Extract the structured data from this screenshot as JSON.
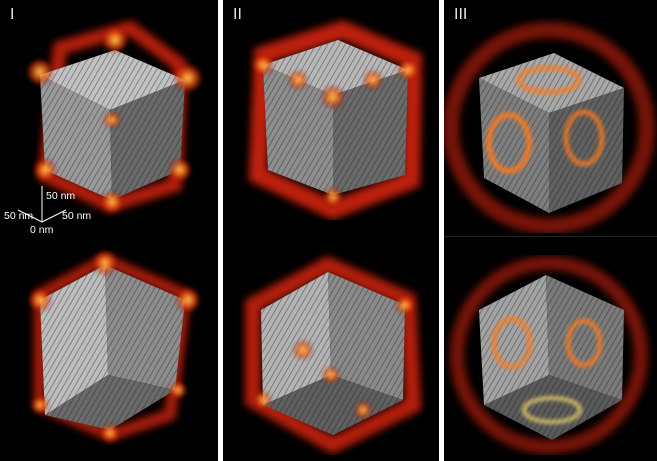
{
  "panels": [
    {
      "label": "I"
    },
    {
      "label": "II"
    },
    {
      "label": "III"
    }
  ],
  "axes": {
    "vertical": "50 nm",
    "left": "50 nm",
    "right": "50 nm",
    "origin": "0 nm"
  },
  "colors": {
    "background": "#000000",
    "separator": "#ffffff",
    "cube_light": "#c9c9c9",
    "cube_mid": "#9a9a9a",
    "cube_dark": "#5e5e5e",
    "field_red": "#c8240c",
    "field_orange": "#ff7a1a",
    "field_yellow": "#ffe36a"
  }
}
